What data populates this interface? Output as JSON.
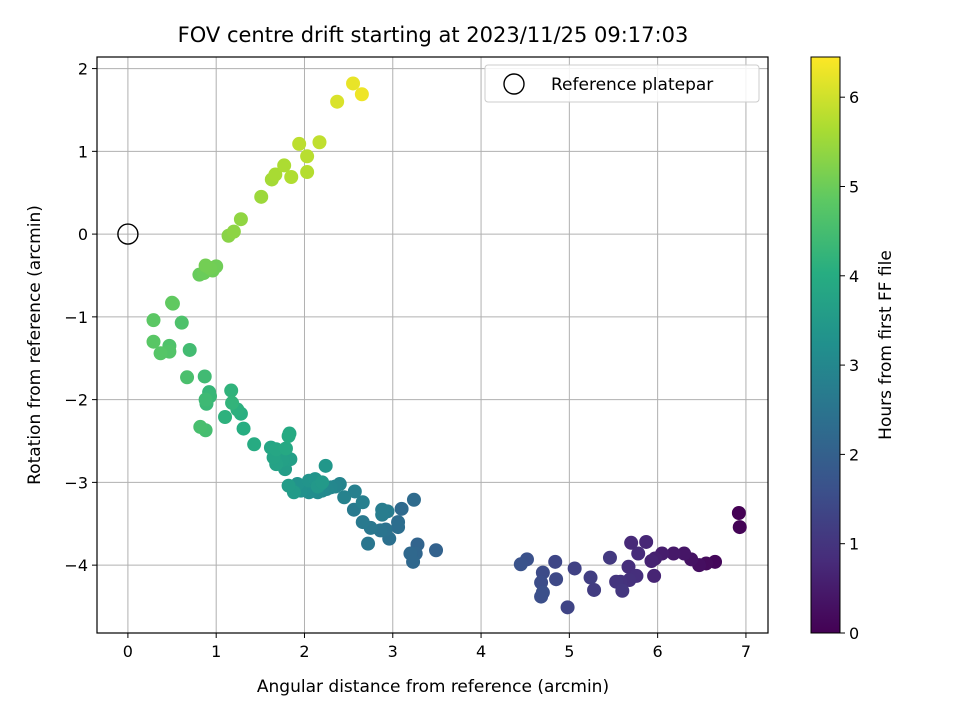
{
  "chart_data": {
    "type": "scatter",
    "title": "FOV centre drift starting at 2023/11/25 09:17:03",
    "xlabel": "Angular distance from reference (arcmin)",
    "ylabel": "Rotation from reference (arcmin)",
    "xlim": [
      -0.35,
      7.25
    ],
    "ylim": [
      -4.82,
      2.14
    ],
    "xticks": [
      0,
      1,
      2,
      3,
      4,
      5,
      6,
      7
    ],
    "yticks": [
      -4,
      -3,
      -2,
      -1,
      0,
      1,
      2
    ],
    "grid": true,
    "legend": {
      "position": "top-right",
      "entries": [
        "Reference platepar"
      ]
    },
    "reference_point": {
      "x": 0,
      "y": 0
    },
    "colorbar": {
      "label": "Hours from first FF file",
      "colormap": "viridis",
      "range": [
        0,
        6.45
      ],
      "ticks": [
        0,
        1,
        2,
        3,
        4,
        5,
        6
      ]
    },
    "series": [
      {
        "points": [
          {
            "x": 6.92,
            "y": -3.37,
            "c": 0.0
          },
          {
            "x": 6.93,
            "y": -3.54,
            "c": 0.05
          },
          {
            "x": 6.65,
            "y": -3.96,
            "c": 0.12
          },
          {
            "x": 6.55,
            "y": -3.98,
            "c": 0.18
          },
          {
            "x": 6.47,
            "y": -4.0,
            "c": 0.25
          },
          {
            "x": 6.38,
            "y": -3.93,
            "c": 0.32
          },
          {
            "x": 6.3,
            "y": -3.86,
            "c": 0.38
          },
          {
            "x": 6.18,
            "y": -3.86,
            "c": 0.45
          },
          {
            "x": 6.05,
            "y": -3.86,
            "c": 0.52
          },
          {
            "x": 5.97,
            "y": -3.92,
            "c": 0.58
          },
          {
            "x": 5.93,
            "y": -3.95,
            "c": 0.63
          },
          {
            "x": 5.96,
            "y": -4.13,
            "c": 0.68
          },
          {
            "x": 5.87,
            "y": -3.72,
            "c": 0.72
          },
          {
            "x": 5.7,
            "y": -3.73,
            "c": 0.76
          },
          {
            "x": 5.78,
            "y": -3.86,
            "c": 0.8
          },
          {
            "x": 5.67,
            "y": -4.02,
            "c": 0.84
          },
          {
            "x": 5.76,
            "y": -4.13,
            "c": 0.88
          },
          {
            "x": 5.68,
            "y": -4.18,
            "c": 0.92
          },
          {
            "x": 5.58,
            "y": -4.2,
            "c": 0.96
          },
          {
            "x": 5.53,
            "y": -4.2,
            "c": 1.0
          },
          {
            "x": 5.6,
            "y": -4.31,
            "c": 1.04
          },
          {
            "x": 5.46,
            "y": -3.91,
            "c": 1.1
          },
          {
            "x": 5.28,
            "y": -4.3,
            "c": 1.15
          },
          {
            "x": 5.24,
            "y": -4.15,
            "c": 1.2
          },
          {
            "x": 5.06,
            "y": -4.04,
            "c": 1.26
          },
          {
            "x": 4.98,
            "y": -4.51,
            "c": 1.32
          },
          {
            "x": 4.84,
            "y": -3.96,
            "c": 1.38
          },
          {
            "x": 4.85,
            "y": -4.17,
            "c": 1.43
          },
          {
            "x": 4.7,
            "y": -4.09,
            "c": 1.48
          },
          {
            "x": 4.68,
            "y": -4.21,
            "c": 1.52
          },
          {
            "x": 4.68,
            "y": -4.38,
            "c": 1.56
          },
          {
            "x": 4.7,
            "y": -4.33,
            "c": 1.58
          },
          {
            "x": 4.52,
            "y": -3.93,
            "c": 1.62
          },
          {
            "x": 4.45,
            "y": -3.99,
            "c": 1.66
          },
          {
            "x": 3.49,
            "y": -3.82,
            "c": 2.05
          },
          {
            "x": 3.28,
            "y": -3.75,
            "c": 2.1
          },
          {
            "x": 3.26,
            "y": -3.86,
            "c": 2.14
          },
          {
            "x": 3.2,
            "y": -3.86,
            "c": 2.18
          },
          {
            "x": 3.23,
            "y": -3.96,
            "c": 2.2
          },
          {
            "x": 3.1,
            "y": -3.32,
            "c": 2.25
          },
          {
            "x": 3.24,
            "y": -3.21,
            "c": 2.28
          },
          {
            "x": 3.06,
            "y": -3.48,
            "c": 2.32
          },
          {
            "x": 3.06,
            "y": -3.54,
            "c": 2.35
          },
          {
            "x": 2.96,
            "y": -3.68,
            "c": 2.4
          },
          {
            "x": 2.92,
            "y": -3.57,
            "c": 2.45
          },
          {
            "x": 2.86,
            "y": -3.58,
            "c": 2.5
          },
          {
            "x": 2.72,
            "y": -3.74,
            "c": 2.55
          },
          {
            "x": 2.75,
            "y": -3.55,
            "c": 2.58
          },
          {
            "x": 2.66,
            "y": -3.48,
            "c": 2.62
          },
          {
            "x": 2.56,
            "y": -3.33,
            "c": 2.66
          },
          {
            "x": 2.94,
            "y": -3.35,
            "c": 2.7
          },
          {
            "x": 2.88,
            "y": -3.33,
            "c": 2.72
          },
          {
            "x": 2.88,
            "y": -3.39,
            "c": 2.74
          },
          {
            "x": 2.66,
            "y": -3.24,
            "c": 2.78
          },
          {
            "x": 2.57,
            "y": -3.11,
            "c": 2.82
          },
          {
            "x": 2.45,
            "y": -3.18,
            "c": 2.86
          },
          {
            "x": 2.4,
            "y": -3.02,
            "c": 2.9
          },
          {
            "x": 2.35,
            "y": -3.05,
            "c": 2.94
          },
          {
            "x": 2.3,
            "y": -3.06,
            "c": 2.98
          },
          {
            "x": 2.25,
            "y": -3.08,
            "c": 3.02
          },
          {
            "x": 2.2,
            "y": -3.1,
            "c": 3.06
          },
          {
            "x": 2.15,
            "y": -3.12,
            "c": 3.1
          },
          {
            "x": 2.1,
            "y": -3.1,
            "c": 3.14
          },
          {
            "x": 2.05,
            "y": -3.12,
            "c": 3.18
          },
          {
            "x": 2.0,
            "y": -3.08,
            "c": 3.22
          },
          {
            "x": 1.96,
            "y": -3.1,
            "c": 3.26
          },
          {
            "x": 1.92,
            "y": -3.02,
            "c": 3.3
          },
          {
            "x": 2.05,
            "y": -2.98,
            "c": 3.33
          },
          {
            "x": 2.12,
            "y": -2.96,
            "c": 3.36
          },
          {
            "x": 2.18,
            "y": -3.02,
            "c": 3.39
          },
          {
            "x": 2.24,
            "y": -2.8,
            "c": 3.42
          },
          {
            "x": 2.15,
            "y": -3.05,
            "c": 3.45
          },
          {
            "x": 2.2,
            "y": -3.0,
            "c": 3.48
          },
          {
            "x": 1.88,
            "y": -3.12,
            "c": 3.52
          },
          {
            "x": 1.82,
            "y": -3.04,
            "c": 3.56
          },
          {
            "x": 1.78,
            "y": -2.84,
            "c": 3.6
          },
          {
            "x": 1.84,
            "y": -2.72,
            "c": 3.64
          },
          {
            "x": 1.75,
            "y": -2.73,
            "c": 3.68
          },
          {
            "x": 1.68,
            "y": -2.78,
            "c": 3.72
          },
          {
            "x": 1.65,
            "y": -2.7,
            "c": 3.76
          },
          {
            "x": 1.62,
            "y": -2.58,
            "c": 3.8
          },
          {
            "x": 1.68,
            "y": -2.6,
            "c": 3.84
          },
          {
            "x": 1.79,
            "y": -2.59,
            "c": 3.88
          },
          {
            "x": 1.83,
            "y": -2.41,
            "c": 3.92
          },
          {
            "x": 1.82,
            "y": -2.44,
            "c": 3.94
          },
          {
            "x": 1.43,
            "y": -2.54,
            "c": 3.98
          },
          {
            "x": 1.31,
            "y": -2.35,
            "c": 4.02
          },
          {
            "x": 1.28,
            "y": -2.17,
            "c": 4.06
          },
          {
            "x": 1.24,
            "y": -2.12,
            "c": 4.1
          },
          {
            "x": 1.1,
            "y": -2.21,
            "c": 4.14
          },
          {
            "x": 1.17,
            "y": -1.89,
            "c": 4.18
          },
          {
            "x": 1.18,
            "y": -2.04,
            "c": 4.22
          },
          {
            "x": 0.92,
            "y": -1.91,
            "c": 4.26
          },
          {
            "x": 0.93,
            "y": -1.96,
            "c": 4.3
          },
          {
            "x": 0.89,
            "y": -2.05,
            "c": 4.34
          },
          {
            "x": 0.88,
            "y": -2.0,
            "c": 4.38
          },
          {
            "x": 0.87,
            "y": -1.72,
            "c": 4.42
          },
          {
            "x": 0.7,
            "y": -1.4,
            "c": 4.46
          },
          {
            "x": 0.88,
            "y": -2.37,
            "c": 4.5
          },
          {
            "x": 0.82,
            "y": -2.33,
            "c": 4.54
          },
          {
            "x": 0.67,
            "y": -1.73,
            "c": 4.58
          },
          {
            "x": 0.61,
            "y": -1.07,
            "c": 4.62
          },
          {
            "x": 0.47,
            "y": -1.35,
            "c": 4.66
          },
          {
            "x": 0.47,
            "y": -1.42,
            "c": 4.7
          },
          {
            "x": 0.37,
            "y": -1.44,
            "c": 4.74
          },
          {
            "x": 0.29,
            "y": -1.3,
            "c": 4.78
          },
          {
            "x": 0.29,
            "y": -1.04,
            "c": 4.82
          },
          {
            "x": 0.51,
            "y": -0.84,
            "c": 4.86
          },
          {
            "x": 0.5,
            "y": -0.83,
            "c": 4.88
          },
          {
            "x": 0.81,
            "y": -0.49,
            "c": 4.95
          },
          {
            "x": 0.86,
            "y": -0.47,
            "c": 4.98
          },
          {
            "x": 0.9,
            "y": -0.4,
            "c": 5.0
          },
          {
            "x": 0.96,
            "y": -0.44,
            "c": 5.02
          },
          {
            "x": 1.0,
            "y": -0.39,
            "c": 5.04
          },
          {
            "x": 0.93,
            "y": -0.41,
            "c": 5.06
          },
          {
            "x": 0.88,
            "y": -0.38,
            "c": 5.08
          },
          {
            "x": 1.14,
            "y": -0.02,
            "c": 5.3
          },
          {
            "x": 1.2,
            "y": 0.03,
            "c": 5.34
          },
          {
            "x": 1.28,
            "y": 0.18,
            "c": 5.38
          },
          {
            "x": 1.51,
            "y": 0.45,
            "c": 5.5
          },
          {
            "x": 1.63,
            "y": 0.66,
            "c": 5.58
          },
          {
            "x": 1.67,
            "y": 0.72,
            "c": 5.62
          },
          {
            "x": 1.77,
            "y": 0.83,
            "c": 5.66
          },
          {
            "x": 1.85,
            "y": 0.69,
            "c": 5.7
          },
          {
            "x": 2.03,
            "y": 0.75,
            "c": 5.74
          },
          {
            "x": 2.03,
            "y": 0.94,
            "c": 5.78
          },
          {
            "x": 1.94,
            "y": 1.09,
            "c": 5.82
          },
          {
            "x": 2.17,
            "y": 1.11,
            "c": 5.86
          },
          {
            "x": 2.37,
            "y": 1.6,
            "c": 6.1
          },
          {
            "x": 2.55,
            "y": 1.82,
            "c": 6.25
          },
          {
            "x": 2.65,
            "y": 1.69,
            "c": 6.3
          }
        ]
      }
    ]
  }
}
